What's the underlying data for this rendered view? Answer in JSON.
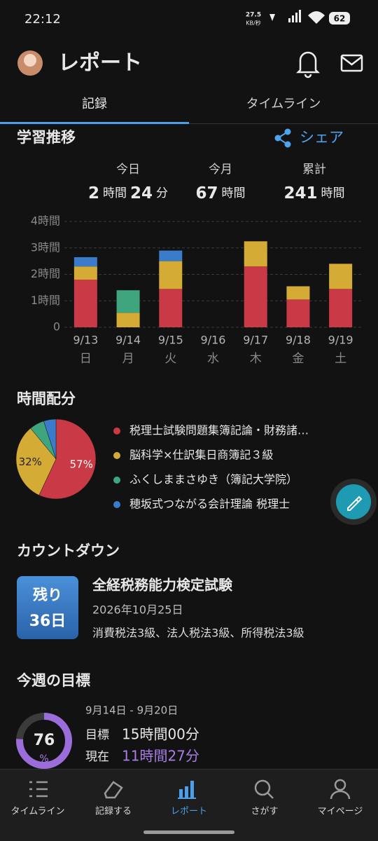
{
  "status_bar": {
    "time": "22:12",
    "speed": "27.5",
    "speed_unit": "KB/秒",
    "battery": "62"
  },
  "header": {
    "title": "レポート"
  },
  "tabs": [
    "記録",
    "タイムライン"
  ],
  "study": {
    "title": "学習推移",
    "share": "シェア",
    "summary": [
      {
        "label": "今日",
        "parts": [
          "2",
          "時間",
          "24",
          "分"
        ]
      },
      {
        "label": "今月",
        "parts": [
          "67",
          "時間"
        ]
      },
      {
        "label": "累計",
        "parts": [
          "241",
          "時間"
        ]
      }
    ]
  },
  "allocation": {
    "title": "時間配分"
  },
  "chart_data": [
    {
      "type": "bar",
      "stacked": true,
      "grid": true,
      "categories": [
        "9/13",
        "9/14",
        "9/15",
        "9/16",
        "9/17",
        "9/18",
        "9/19"
      ],
      "weekdays": [
        "日",
        "月",
        "火",
        "水",
        "木",
        "金",
        "土"
      ],
      "ylim": [
        0,
        4
      ],
      "yticks": [
        0,
        {
          "value": 1,
          "label": "1時間"
        },
        {
          "value": 2,
          "label": "2時間"
        },
        {
          "value": 3,
          "label": "3時間"
        },
        {
          "value": 4,
          "label": "4時間"
        }
      ],
      "series": [
        {
          "color": "#c93a46",
          "values": [
            1.8,
            0,
            1.45,
            0,
            2.3,
            1.05,
            1.45
          ]
        },
        {
          "color": "#d4ab35",
          "values": [
            0.5,
            0.55,
            1.05,
            0,
            0.95,
            0.5,
            0.95
          ]
        },
        {
          "color": "#3fa57f",
          "values": [
            0,
            0.85,
            0,
            0,
            0,
            0,
            0
          ]
        },
        {
          "color": "#3a7cc9",
          "values": [
            0.35,
            0,
            0.4,
            0,
            0,
            0,
            0
          ]
        }
      ]
    },
    {
      "type": "pie",
      "categories": [
        "税理士試験問題集簿記論・財務諸…",
        "脳科学×仕訳集日商簿記３級",
        "ふくしままさゆき（簿記大学院）",
        "穂坂式つながる会計理論 税理士"
      ],
      "values": [
        57,
        32,
        6,
        5
      ],
      "value_labels": [
        "57%",
        "32%",
        null,
        null
      ],
      "colors": [
        "#c93a46",
        "#d4ab35",
        "#3fa57f",
        "#3a7cc9"
      ]
    }
  ],
  "countdown": {
    "title": "カウントダウン",
    "badge_top": "残り",
    "badge_days": "36日",
    "exam": "全経税務能力検定試験",
    "date": "2026年10月25日",
    "subjects": "消費税法3級、法人税法3級、所得税法3級"
  },
  "goal": {
    "title": "今週の目標",
    "range": "9月14日 - 9月20日",
    "percent": 76,
    "percent_sign": "%",
    "target_label": "目標",
    "target": "15時間00分",
    "current_label": "現在",
    "current": "11時間27分"
  },
  "nav": [
    "タイムライン",
    "記録する",
    "レポート",
    "さがす",
    "マイページ"
  ]
}
